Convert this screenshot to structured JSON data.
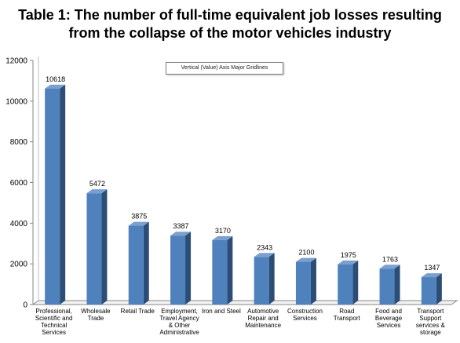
{
  "chart_data": {
    "type": "bar",
    "title_lines": [
      "Table 1: The number of full-time equivalent job losses resulting",
      "from the collapse of the motor vehicles industry"
    ],
    "categories": [
      [
        "Professional,",
        "Scientific and",
        "Technical",
        "Services"
      ],
      [
        "Wholesale",
        "Trade"
      ],
      [
        "Retail Trade"
      ],
      [
        "Employment,",
        "Travel Agency",
        "& Other",
        "Administrative"
      ],
      [
        "Iron and Steel"
      ],
      [
        "Automotive",
        "Repair and",
        "Maintenance"
      ],
      [
        "Construction",
        "Services"
      ],
      [
        "Road",
        "Transport"
      ],
      [
        "Food and",
        "Beverage",
        "Services"
      ],
      [
        "Transport",
        "Support",
        "services &",
        "storage"
      ]
    ],
    "values": [
      10618,
      5472,
      3875,
      3387,
      3170,
      2343,
      2100,
      1975,
      1763,
      1347
    ],
    "ylim": [
      0,
      12000
    ],
    "yticks": [
      0,
      2000,
      4000,
      6000,
      8000,
      10000,
      12000
    ],
    "grid": false,
    "style": "3d-column",
    "colors": {
      "front": "#4f81bd",
      "side": "#2c4d75",
      "top": "#7ba0cf"
    },
    "tooltip": "Vertical (Value) Axis Major Gridlines"
  }
}
